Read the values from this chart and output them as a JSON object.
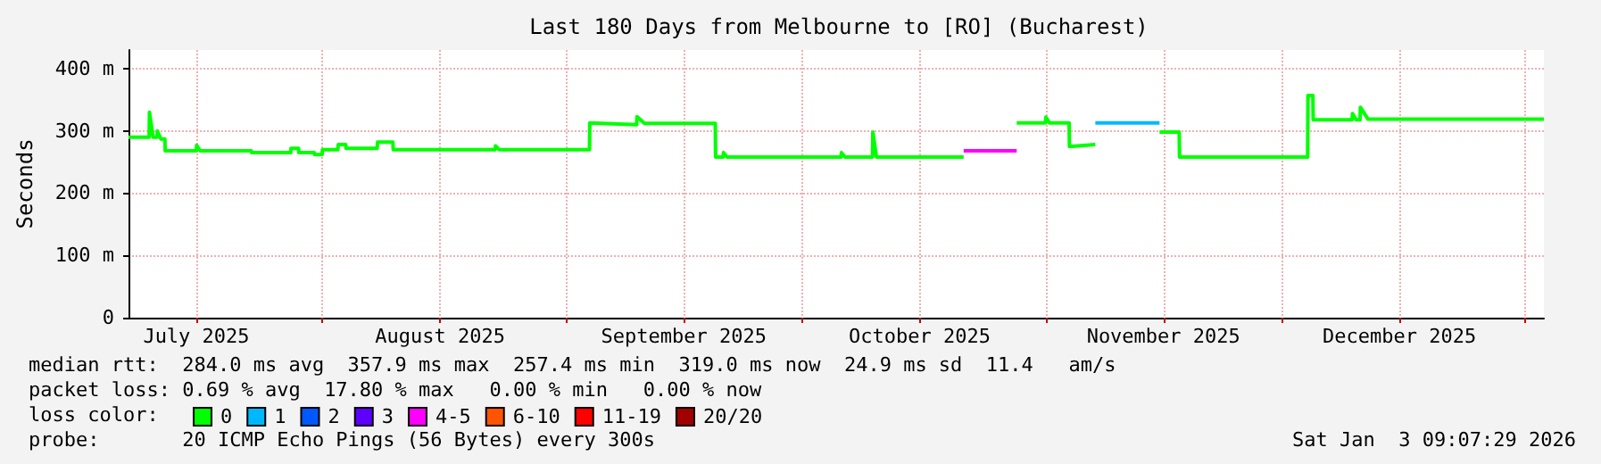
{
  "chart_data": {
    "type": "line",
    "title": "Last 180 Days from Melbourne to [RO] (Bucharest)",
    "ylabel": "Seconds",
    "legend_title": "loss color:",
    "legend": "bottom left",
    "grid": true,
    "marker": "none",
    "line_style": "solid",
    "xlim": [
      "2025-07-07T09:07",
      "2026-01-03T09:07"
    ],
    "xticks": [
      {
        "value": "2025-07-16",
        "label": "July 2025"
      },
      {
        "value": "2025-08-01",
        "label": null
      },
      {
        "value": "2025-08-16",
        "label": "August 2025"
      },
      {
        "value": "2025-09-01",
        "label": null
      },
      {
        "value": "2025-09-16",
        "label": "September 2025"
      },
      {
        "value": "2025-10-01",
        "label": null
      },
      {
        "value": "2025-10-16",
        "label": "October 2025"
      },
      {
        "value": "2025-11-01",
        "label": null
      },
      {
        "value": "2025-11-16",
        "label": "November 2025"
      },
      {
        "value": "2025-12-01",
        "label": null
      },
      {
        "value": "2025-12-16",
        "label": "December 2025"
      },
      {
        "value": "2026-01-01",
        "label": null
      }
    ],
    "ylim": [
      0,
      430
    ],
    "yticks": [
      0,
      {
        "value": 100,
        "label": "100 m"
      },
      {
        "value": 200,
        "label": "200 m"
      },
      {
        "value": 300,
        "label": "300 m"
      },
      {
        "value": 400,
        "label": "400 m"
      }
    ],
    "series": [
      {
        "name": "0",
        "color": "#00ff00",
        "x": [
          "2025-07-07T09:07",
          "2025-07-10T00:00",
          "2025-07-10T01:00",
          "2025-07-10T12:00",
          "2025-07-11T00:00",
          "2025-07-11T01:00",
          "2025-07-11T12:00",
          "2025-07-12T00:00",
          "2025-07-12T01:00",
          "2025-07-16T00:00",
          "2025-07-16T01:00",
          "2025-07-16T12:00",
          "2025-07-23T00:00",
          "2025-07-23T01:00",
          "2025-07-28T00:00",
          "2025-07-28T01:00",
          "2025-07-29T00:00",
          "2025-07-29T01:00",
          "2025-07-31T00:00",
          "2025-07-31T01:00",
          "2025-08-01T00:00",
          "2025-08-01T01:00",
          "2025-08-03T00:00",
          "2025-08-03T01:00",
          "2025-08-04T00:00",
          "2025-08-04T01:00",
          "2025-08-08T00:00",
          "2025-08-08T01:00",
          "2025-08-10T00:00",
          "2025-08-10T01:00",
          "2025-08-23T00:00",
          "2025-08-23T01:00",
          "2025-08-23T12:00",
          "2025-09-04T00:00",
          "2025-09-04T01:00",
          "2025-09-10T00:00",
          "2025-09-10T01:00",
          "2025-09-11T00:00",
          "2025-09-20T00:00",
          "2025-09-20T01:00",
          "2025-09-21T00:00",
          "2025-09-21T01:00",
          "2025-09-21T12:00",
          "2025-10-06T00:00",
          "2025-10-06T01:00",
          "2025-10-06T12:00",
          "2025-10-10T00:00",
          "2025-10-10T01:00",
          "2025-10-10T12:00",
          "2025-10-21T14:00",
          "2025-10-25T00:00",
          "2025-10-28T08:00",
          "2025-11-01T00:00",
          "2025-11-01T01:00",
          "2025-11-01T12:00",
          "2025-11-04T00:00",
          "2025-11-04T01:00",
          "2025-11-07T08:00",
          "2025-11-11T00:00",
          "2025-11-15T12:00",
          "2025-11-18T00:00",
          "2025-11-18T01:00",
          "2025-11-28T00:00",
          "2025-12-04T08:00",
          "2025-12-04T09:00",
          "2025-12-05T00:00",
          "2025-12-05T01:00",
          "2025-12-10T00:00",
          "2025-12-10T01:00",
          "2025-12-10T12:00",
          "2025-12-11T00:00",
          "2025-12-11T01:00",
          "2025-12-12T00:00",
          "2026-01-03T09:07"
        ],
        "values": [
          290,
          290,
          330,
          290,
          290,
          300,
          287,
          287,
          268,
          268,
          277,
          268,
          268,
          265,
          265,
          272,
          272,
          265,
          265,
          262,
          262,
          270,
          270,
          278,
          278,
          272,
          272,
          282,
          282,
          270,
          270,
          276,
          270,
          270,
          313,
          310,
          323,
          312,
          312,
          258,
          258,
          265,
          258,
          258,
          265,
          258,
          258,
          298,
          258,
          258,
          null,
          313,
          313,
          322,
          313,
          313,
          275,
          278,
          null,
          298,
          298,
          258,
          258,
          258,
          357,
          357,
          318,
          318,
          328,
          318,
          318,
          338,
          319,
          319
        ]
      },
      {
        "name": "1",
        "color": "#00b8ff",
        "x": [
          "2025-11-07T08:00",
          "2025-11-11T12:00",
          "2025-11-15T12:00"
        ],
        "values": [
          313,
          313,
          313
        ]
      },
      {
        "name": "2",
        "color": "#0059ff"
      },
      {
        "name": "3",
        "color": "#5e00ff"
      },
      {
        "name": "4-5",
        "color": "#ff00ff",
        "x": [
          "2025-10-21T14:00",
          "2025-10-25T00:00",
          "2025-10-28T08:00"
        ],
        "values": [
          268,
          268,
          268
        ]
      },
      {
        "name": "6-10",
        "color": "#ff5500"
      },
      {
        "name": "11-19",
        "color": "#ff0000"
      },
      {
        "name": "20/20",
        "color": "#a10000"
      }
    ],
    "annotations": [
      "median rtt:  284.0 ms avg  357.9 ms max  257.4 ms min  319.0 ms now  24.9 ms sd  11.4   am/s",
      "packet loss: 0.69 % avg  17.80 % max   0.00 % min   0.00 % now",
      "probe:       20 ICMP Echo Pings (56 Bytes) every 300s",
      "Sat Jan  3 09:07:29 2026"
    ]
  }
}
